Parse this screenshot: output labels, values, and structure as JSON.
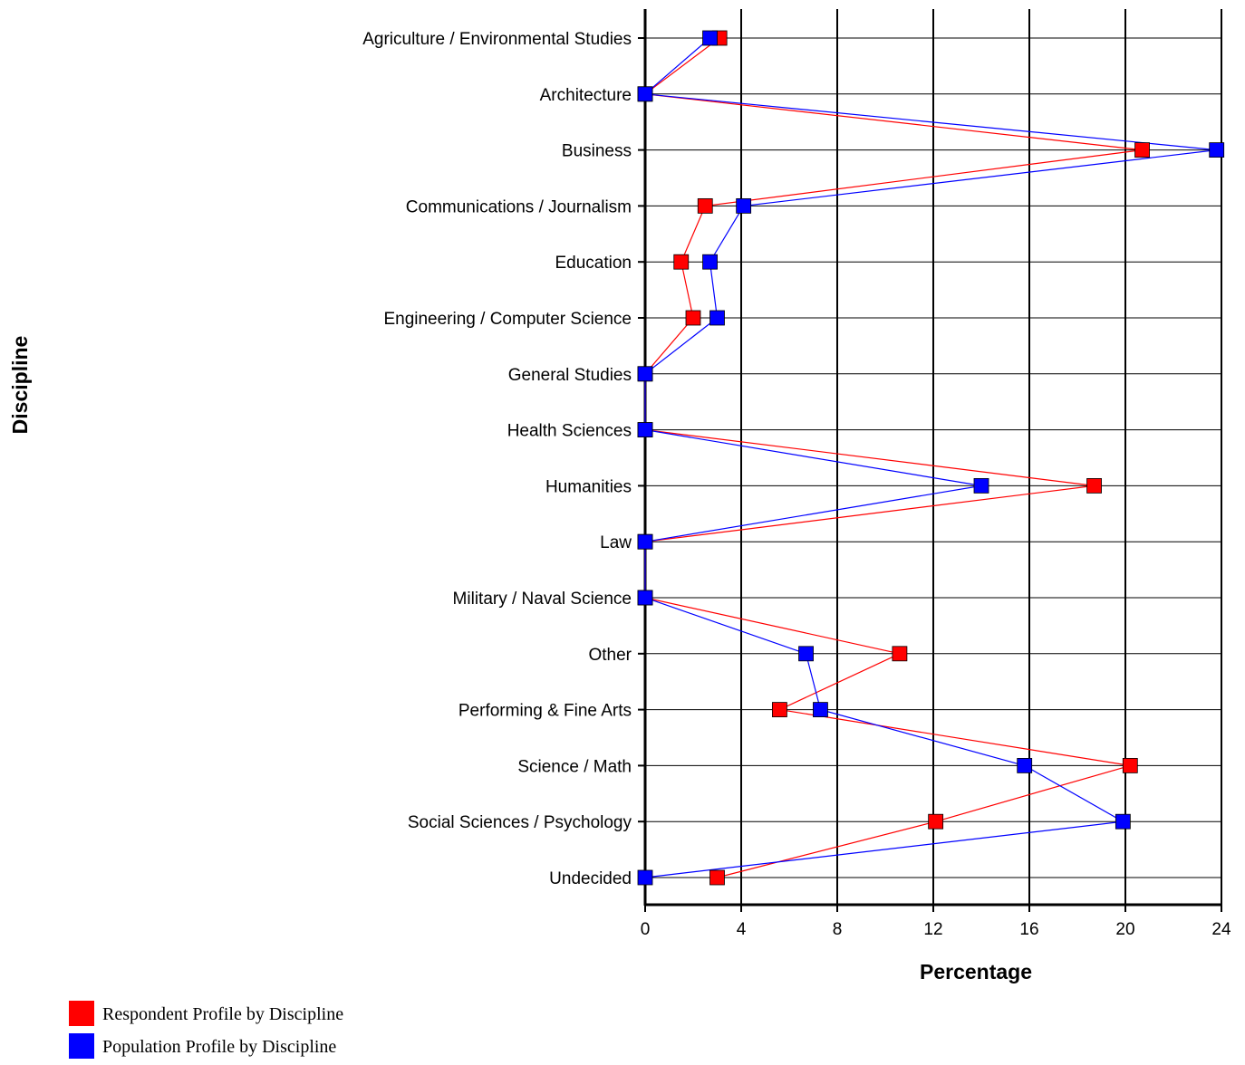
{
  "chart_data": {
    "type": "line",
    "orientation": "horizontal",
    "categories": [
      "Agriculture / Environmental Studies",
      "Architecture",
      "Business",
      "Communications / Journalism",
      "Education",
      "Engineering / Computer Science",
      "General Studies",
      "Health Sciences",
      "Humanities",
      "Law",
      "Military / Naval Science",
      "Other",
      "Performing & Fine Arts",
      "Science / Math",
      "Social Sciences / Psychology",
      "Undecided"
    ],
    "series": [
      {
        "name": "Respondent Profile by Discipline",
        "color": "#ff0000",
        "values": [
          3.1,
          0,
          20.7,
          2.5,
          1.5,
          2.0,
          0,
          0,
          18.7,
          0,
          0,
          10.6,
          5.6,
          20.2,
          12.1,
          3.0
        ]
      },
      {
        "name": "Population Profile by Discipline",
        "color": "#0000ff",
        "values": [
          2.7,
          0,
          23.8,
          4.1,
          2.7,
          3.0,
          0,
          0,
          14.0,
          0,
          0,
          6.7,
          7.3,
          15.8,
          19.9,
          0
        ]
      }
    ],
    "xlabel": "Percentage",
    "ylabel": "Discipline",
    "xlim": [
      0,
      24
    ],
    "xticks": [
      "0",
      "4",
      "8",
      "12",
      "16",
      "20",
      "24"
    ],
    "grid": true,
    "legend_position": "bottom-left"
  }
}
